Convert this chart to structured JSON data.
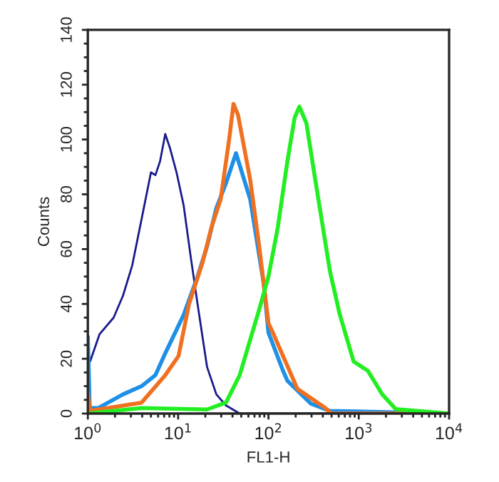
{
  "chart_data": {
    "type": "line",
    "xlabel": "FL1-H",
    "ylabel": "Counts",
    "log": "x",
    "xlim": [
      1,
      10000
    ],
    "xticks": [
      {
        "value": 1,
        "label": "10$^{0}$"
      },
      {
        "value": 10,
        "label": "10$^{1}$"
      },
      {
        "value": 100,
        "label": "10$^{2}$"
      },
      {
        "value": 1000,
        "label": "10$^{3}$"
      },
      {
        "value": 10000,
        "label": "10$^{4}$"
      }
    ],
    "ylim": [
      0,
      140
    ],
    "yticks": [
      0,
      20,
      40,
      60,
      80,
      100,
      120,
      140
    ],
    "grid": false,
    "legend": false,
    "series": [
      {
        "color": "#1a1a8c",
        "x": [
          1,
          1.06,
          1.35,
          1.93,
          2.45,
          3.1,
          3.94,
          5.0,
          5.6,
          6.3,
          7.2,
          8.1,
          9.6,
          11.5,
          13.8,
          16.4,
          20.9,
          26.5,
          33.8,
          48,
          10000
        ],
        "values": [
          20,
          19,
          29,
          35,
          43,
          54,
          71,
          88,
          87,
          92,
          102,
          97,
          88,
          76,
          57,
          40,
          17,
          7,
          3,
          0,
          0
        ]
      },
      {
        "color": "#1e90e6",
        "x": [
          1,
          1.05,
          1.3,
          2.45,
          3.94,
          5.6,
          7.2,
          11.5,
          16.4,
          20.9,
          26.5,
          33.8,
          43.7,
          63,
          89,
          100,
          145,
          162,
          296,
          475,
          10000
        ],
        "values": [
          28,
          2,
          2,
          7,
          10,
          14,
          22,
          36,
          50,
          61,
          75,
          84,
          95,
          78,
          47,
          29.5,
          15.6,
          12,
          3.6,
          1,
          0
        ]
      },
      {
        "color": "#f07020",
        "x": [
          1,
          1.05,
          3.94,
          7.2,
          10.1,
          13.2,
          18.6,
          23.4,
          29.5,
          36.7,
          41,
          46,
          63,
          79,
          100,
          112,
          209,
          427,
          500,
          10000
        ],
        "values": [
          8,
          1,
          4,
          14,
          21,
          40,
          55,
          68,
          78,
          100,
          113,
          109,
          85,
          61,
          33,
          29.5,
          9,
          2,
          0,
          0
        ]
      },
      {
        "color": "#22ee22",
        "x": [
          1,
          3.94,
          20.9,
          33.8,
          48,
          79,
          100,
          127,
          162,
          195,
          220,
          263,
          331,
          479,
          612,
          877,
          1260,
          1820,
          2570,
          10000
        ],
        "values": [
          0,
          2,
          1.5,
          4,
          14,
          38,
          50,
          68,
          92,
          108,
          112,
          106,
          85,
          52,
          36.5,
          19,
          15.6,
          7,
          1.6,
          0
        ]
      }
    ]
  }
}
